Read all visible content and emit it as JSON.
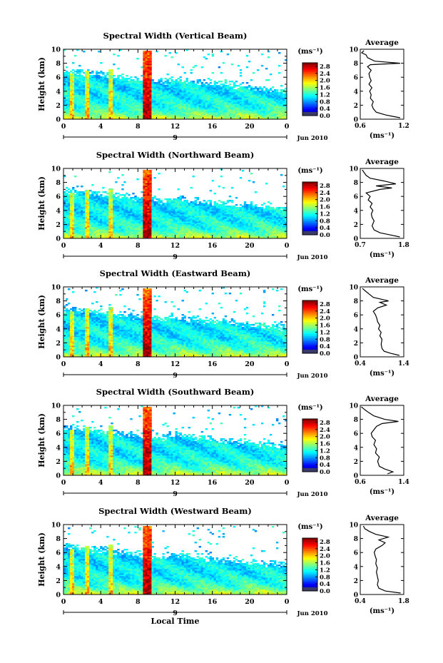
{
  "chart_data": [
    {
      "type": "heatmap",
      "title": "Spectral Width (Vertical Beam)",
      "ylabel": "Height (km)",
      "ylim": [
        0,
        10
      ],
      "yticks": [
        "0",
        "2",
        "4",
        "6",
        "8",
        "10"
      ],
      "xlim": [
        0,
        24
      ],
      "xticks": [
        "0",
        "4",
        "8",
        "12",
        "16",
        "20",
        "0"
      ],
      "date_tick": "9",
      "date_label": "Jun 2010",
      "colorbar": {
        "unit": "(ms⁻¹)",
        "ticks": [
          "0.0",
          "0.4",
          "0.8",
          "1.2",
          "1.6",
          "2.0",
          "2.4",
          "2.8"
        ],
        "range": [
          0,
          3.0
        ]
      },
      "profile": {
        "title": "Average",
        "xlabel": "(ms⁻¹)",
        "xticks": [
          "0.6",
          "1.2"
        ],
        "xlim": [
          0.6,
          1.2
        ],
        "ylim": [
          0,
          10
        ],
        "yticks": [
          "0",
          "2",
          "4",
          "6",
          "8",
          "10"
        ],
        "points": [
          [
            1.15,
            0.2
          ],
          [
            1.05,
            0.4
          ],
          [
            0.95,
            0.6
          ],
          [
            0.82,
            1.0
          ],
          [
            0.78,
            1.5
          ],
          [
            0.76,
            2.0
          ],
          [
            0.78,
            2.5
          ],
          [
            0.74,
            3.0
          ],
          [
            0.75,
            3.5
          ],
          [
            0.73,
            4.0
          ],
          [
            0.76,
            4.5
          ],
          [
            0.72,
            5.0
          ],
          [
            0.75,
            5.5
          ],
          [
            0.73,
            6.0
          ],
          [
            0.72,
            6.5
          ],
          [
            0.75,
            7.0
          ],
          [
            0.7,
            7.5
          ],
          [
            0.74,
            7.8
          ],
          [
            1.15,
            8.0
          ],
          [
            0.8,
            8.3
          ],
          [
            0.7,
            8.8
          ],
          [
            0.68,
            9.2
          ],
          [
            0.62,
            9.5
          ],
          [
            0.65,
            9.8
          ]
        ]
      }
    },
    {
      "type": "heatmap",
      "title": "Spectral Width (Northward Beam)",
      "ylabel": "Height (km)",
      "ylim": [
        0,
        10
      ],
      "yticks": [
        "0",
        "2",
        "4",
        "6",
        "8",
        "10"
      ],
      "xlim": [
        0,
        24
      ],
      "xticks": [
        "0",
        "4",
        "8",
        "12",
        "16",
        "20",
        "0"
      ],
      "date_tick": "9",
      "date_label": "Jun 2010",
      "colorbar": {
        "unit": "(ms⁻¹)",
        "ticks": [
          "0.0",
          "0.4",
          "0.8",
          "1.2",
          "1.6",
          "2.0",
          "2.4",
          "2.8"
        ],
        "range": [
          0,
          3.0
        ]
      },
      "profile": {
        "title": "Average",
        "xlabel": "(ms⁻¹)",
        "xticks": [
          "0.7",
          "1.8"
        ],
        "xlim": [
          0.7,
          1.8
        ],
        "ylim": [
          0,
          10
        ],
        "yticks": [
          "0",
          "2",
          "4",
          "6",
          "8",
          "10"
        ],
        "points": [
          [
            1.7,
            0.2
          ],
          [
            1.45,
            0.5
          ],
          [
            1.2,
            0.8
          ],
          [
            1.05,
            1.2
          ],
          [
            1.0,
            1.8
          ],
          [
            1.05,
            2.5
          ],
          [
            1.0,
            3.0
          ],
          [
            0.98,
            3.5
          ],
          [
            1.02,
            4.0
          ],
          [
            0.95,
            4.5
          ],
          [
            1.0,
            5.0
          ],
          [
            0.9,
            5.5
          ],
          [
            0.95,
            6.0
          ],
          [
            0.85,
            6.5
          ],
          [
            1.2,
            7.0
          ],
          [
            1.5,
            7.2
          ],
          [
            1.1,
            7.5
          ],
          [
            1.6,
            7.8
          ],
          [
            1.3,
            8.2
          ],
          [
            0.95,
            8.6
          ],
          [
            0.85,
            9.0
          ],
          [
            0.8,
            9.4
          ],
          [
            0.75,
            9.8
          ]
        ]
      }
    },
    {
      "type": "heatmap",
      "title": "Spectral Width (Eastward Beam)",
      "ylabel": "Height (km)",
      "ylim": [
        0,
        10
      ],
      "yticks": [
        "0",
        "2",
        "4",
        "6",
        "8",
        "10"
      ],
      "xlim": [
        0,
        24
      ],
      "xticks": [
        "0",
        "4",
        "8",
        "12",
        "16",
        "20",
        "0"
      ],
      "date_tick": "9",
      "date_label": "Jun 2010",
      "colorbar": {
        "unit": "(ms⁻¹)",
        "ticks": [
          "0.0",
          "0.4",
          "0.8",
          "1.2",
          "1.6",
          "2.0",
          "2.4",
          "2.8"
        ],
        "range": [
          0,
          3.0
        ]
      },
      "profile": {
        "title": "Average",
        "xlabel": "(ms⁻¹)",
        "xticks": [
          "0.4",
          "1.4"
        ],
        "xlim": [
          0.4,
          1.4
        ],
        "ylim": [
          0,
          10
        ],
        "yticks": [
          "0",
          "2",
          "4",
          "6",
          "8",
          "10"
        ],
        "points": [
          [
            1.3,
            0.2
          ],
          [
            1.1,
            0.5
          ],
          [
            0.95,
            0.8
          ],
          [
            0.9,
            1.2
          ],
          [
            0.88,
            1.8
          ],
          [
            0.9,
            2.5
          ],
          [
            0.85,
            3.0
          ],
          [
            0.88,
            3.5
          ],
          [
            0.82,
            4.0
          ],
          [
            0.85,
            4.5
          ],
          [
            0.8,
            5.0
          ],
          [
            0.78,
            5.5
          ],
          [
            0.75,
            6.0
          ],
          [
            0.7,
            6.5
          ],
          [
            0.8,
            7.0
          ],
          [
            1.0,
            7.4
          ],
          [
            0.85,
            7.8
          ],
          [
            1.05,
            8.0
          ],
          [
            0.7,
            8.5
          ],
          [
            0.6,
            9.0
          ],
          [
            0.5,
            9.5
          ],
          [
            0.45,
            9.8
          ]
        ]
      }
    },
    {
      "type": "heatmap",
      "title": "Spectral Width (Southward Beam)",
      "ylabel": "Height (km)",
      "ylim": [
        0,
        10
      ],
      "yticks": [
        "0",
        "2",
        "4",
        "6",
        "8",
        "10"
      ],
      "xlim": [
        0,
        24
      ],
      "xticks": [
        "0",
        "4",
        "8",
        "12",
        "16",
        "20",
        "0"
      ],
      "date_tick": "9",
      "date_label": "Jun 2010",
      "colorbar": {
        "unit": "(ms⁻¹)",
        "ticks": [
          "0.0",
          "0.4",
          "0.8",
          "1.2",
          "1.6",
          "2.0",
          "2.4",
          "2.8"
        ],
        "range": [
          0,
          3.0
        ]
      },
      "profile": {
        "title": "Average",
        "xlabel": "(ms⁻¹)",
        "xticks": [
          "0.6",
          "1.4"
        ],
        "xlim": [
          0.6,
          1.4
        ],
        "ylim": [
          0,
          10
        ],
        "yticks": [
          "0",
          "2",
          "4",
          "6",
          "8",
          "10"
        ],
        "points": [
          [
            1.1,
            0.2
          ],
          [
            1.2,
            0.5
          ],
          [
            1.05,
            0.9
          ],
          [
            0.95,
            1.3
          ],
          [
            0.92,
            2.0
          ],
          [
            0.95,
            2.6
          ],
          [
            0.88,
            3.2
          ],
          [
            0.9,
            3.8
          ],
          [
            0.85,
            4.4
          ],
          [
            0.88,
            5.0
          ],
          [
            0.82,
            5.5
          ],
          [
            0.8,
            6.0
          ],
          [
            0.85,
            6.5
          ],
          [
            0.9,
            7.0
          ],
          [
            1.0,
            7.4
          ],
          [
            1.3,
            7.7
          ],
          [
            1.05,
            8.0
          ],
          [
            0.85,
            8.5
          ],
          [
            0.75,
            9.0
          ],
          [
            0.68,
            9.4
          ],
          [
            0.62,
            9.8
          ]
        ]
      }
    },
    {
      "type": "heatmap",
      "title": "Spectral Width (Westward Beam)",
      "ylabel": "Height (km)",
      "xlabel": "Local Time",
      "ylim": [
        0,
        10
      ],
      "yticks": [
        "0",
        "2",
        "4",
        "6",
        "8",
        "10"
      ],
      "xlim": [
        0,
        24
      ],
      "xticks": [
        "0",
        "4",
        "8",
        "12",
        "16",
        "20",
        "0"
      ],
      "date_tick": "9",
      "date_label": "Jun 2010",
      "colorbar": {
        "unit": "(ms⁻¹)",
        "ticks": [
          "0.0",
          "0.4",
          "0.8",
          "1.2",
          "1.6",
          "2.0",
          "2.4",
          "2.8"
        ],
        "range": [
          0,
          3.0
        ]
      },
      "profile": {
        "title": "Average",
        "xlabel": "(ms⁻¹)",
        "xticks": [
          "0.4",
          "1.8"
        ],
        "xlim": [
          0.4,
          1.8
        ],
        "ylim": [
          0,
          10
        ],
        "yticks": [
          "0",
          "2",
          "4",
          "6",
          "8",
          "10"
        ],
        "points": [
          [
            1.7,
            0.2
          ],
          [
            1.2,
            0.5
          ],
          [
            1.0,
            0.9
          ],
          [
            0.95,
            1.4
          ],
          [
            0.98,
            2.0
          ],
          [
            0.95,
            2.6
          ],
          [
            0.92,
            3.2
          ],
          [
            0.95,
            3.8
          ],
          [
            0.9,
            4.4
          ],
          [
            0.92,
            5.0
          ],
          [
            0.88,
            5.5
          ],
          [
            0.85,
            6.0
          ],
          [
            0.9,
            6.5
          ],
          [
            1.1,
            7.0
          ],
          [
            1.2,
            7.4
          ],
          [
            1.0,
            7.8
          ],
          [
            1.3,
            8.2
          ],
          [
            0.9,
            8.6
          ],
          [
            0.7,
            9.0
          ],
          [
            0.55,
            9.4
          ],
          [
            0.5,
            9.8
          ]
        ]
      }
    }
  ]
}
